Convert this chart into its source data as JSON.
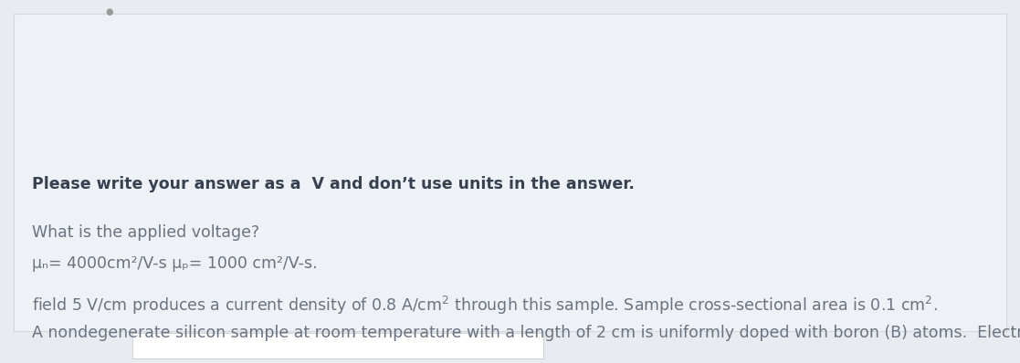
{
  "bg_outer": "#e8ecf0",
  "bg_card": "#eef1f5",
  "card_border": "#d5d9de",
  "text_color": "#6b7280",
  "bold_color": "#374151",
  "font_size": 12.5,
  "line1": "A nondegenerate silicon sample at room temperature with a length of 2 cm is uniformly doped with boron (B) atoms.  Electric",
  "line2a": "field 5 V/cm produces a current density of 0.8 A/cm",
  "line2b": " through this sample. Sample cross-sectional area is 0.1 cm",
  "line2c": ".",
  "mu_line": "μₙ= 4000cm²/V-s μₚ= 1000 cm²/V-s.",
  "question": "What is the applied voltage?",
  "instruction": "Please write your answer as a  V and don’t use units in the answer.",
  "bottom_input_color": "#ffffff",
  "bottom_input_border": "#d0d4d9"
}
